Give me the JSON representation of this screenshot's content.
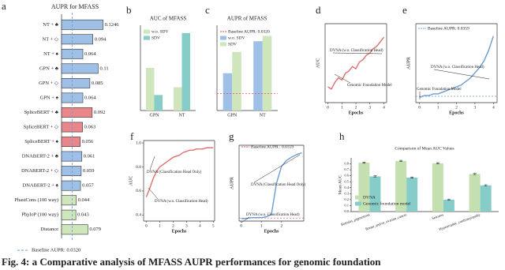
{
  "caption": "Fig. 4: a Comparative analysis of MFASS AUPR performances for genomic foundation",
  "chart_data": [
    {
      "type": "hbar",
      "label": "a",
      "title": "AUPR for MFASS",
      "categories": [
        "NT + ♣",
        "NT + ◇",
        "NT + ♠",
        "GPN + ♣",
        "GPN + ◇",
        "GPN + ♠",
        "SpliceBERT + ♣",
        "SpliceBERT + ◇",
        "SpliceBERT + ♠",
        "DNABERT-2 + ♣",
        "DNABERT-2 + ◇",
        "DNABERT-2 + ♠",
        "PhastCons (100 way)",
        "PhyloP (100 way)",
        "Distance"
      ],
      "values": [
        0.1246,
        0.094,
        0.064,
        0.11,
        0.085,
        0.064,
        0.092,
        0.063,
        0.056,
        0.061,
        0.059,
        0.057,
        0.044,
        0.043,
        0.079
      ],
      "colors": [
        "#9ebfe6",
        "#9ebfe6",
        "#9ebfe6",
        "#9ebfe6",
        "#9ebfe6",
        "#9ebfe6",
        "#e8868b",
        "#e8868b",
        "#e8868b",
        "#9ebfe6",
        "#9ebfe6",
        "#9ebfe6",
        "#cfe6bd",
        "#cfe6bd",
        "#cfe6bd"
      ],
      "xlim": [
        0,
        0.135
      ],
      "baseline": 0.032,
      "baseline_label": "Baseline AUPR: 0.0320",
      "baseline_color": "#6b9bd1"
    },
    {
      "type": "grouped_bar",
      "label": "b",
      "title": "AUC of MFASS",
      "categories": [
        "GPN",
        "NT"
      ],
      "series": [
        {
          "name": "w.o. SDV",
          "color": "#cfe6bd",
          "values": [
            0.61,
            0.56
          ]
        },
        {
          "name": "SDV",
          "color": "#86ccc8",
          "values": [
            0.54,
            0.7
          ]
        }
      ],
      "ylim": [
        0.5,
        0.72
      ]
    },
    {
      "type": "grouped_bar",
      "label": "c",
      "title": "AUPR of MFASS",
      "categories": [
        "GPN",
        "NT"
      ],
      "series": [
        {
          "name": "w.o. SDV",
          "color": "#9ebfe6",
          "values": [
            0.07,
            0.13
          ]
        },
        {
          "name": "SDV",
          "color": "#cfe6bd",
          "values": [
            0.11,
            0.14
          ]
        }
      ],
      "ylim": [
        0,
        0.16
      ],
      "baseline": 0.032,
      "baseline_label": "Baseline AUPR: 0.0320",
      "baseline_color": "#e05050"
    },
    {
      "type": "line",
      "label": "d",
      "xlabel": "Epochs",
      "ylabel": "AUC",
      "x": [
        0,
        0.25,
        0.5,
        0.75,
        1,
        1.25,
        1.5,
        1.75,
        2,
        2.25,
        2.5,
        2.75,
        3,
        3.25,
        3.5,
        3.75,
        4
      ],
      "series": [
        {
          "color": "#e07070",
          "values": [
            0.62,
            0.61,
            0.64,
            0.66,
            0.65,
            0.68,
            0.69,
            0.71,
            0.7,
            0.73,
            0.74,
            0.76,
            0.77,
            0.79,
            0.8,
            0.82,
            0.84
          ]
        }
      ],
      "xlim": [
        -0.2,
        4.2
      ],
      "ylim": [
        0.55,
        0.9
      ],
      "xticks": [
        0,
        1,
        2,
        3,
        4
      ],
      "annotations": [
        "DYNA (w.o. Classification Head)",
        "Genomic Foundation Model"
      ]
    },
    {
      "type": "line",
      "label": "e",
      "xlabel": "Epochs",
      "ylabel": "AUPR",
      "x": [
        0,
        0.25,
        0.5,
        0.75,
        1,
        1.25,
        1.5,
        1.75,
        2,
        2.25,
        2.5,
        2.75,
        3,
        3.25,
        3.5,
        3.75,
        4
      ],
      "series": [
        {
          "color": "#6b9bd1",
          "values": [
            0.03,
            0.04,
            0.04,
            0.05,
            0.05,
            0.06,
            0.07,
            0.08,
            0.09,
            0.1,
            0.12,
            0.14,
            0.17,
            0.2,
            0.24,
            0.3,
            0.38
          ]
        }
      ],
      "xlim": [
        -0.2,
        4.2
      ],
      "ylim": [
        0,
        0.45
      ],
      "xticks": [
        0,
        1,
        2,
        3,
        4
      ],
      "baseline": 0.0359,
      "baseline_label": "Baseline AUPR: 0.0359",
      "baseline_color": "#6b9bd1",
      "annotations": [
        "DYNA (w.o. Classification Head)",
        "Genomic Foundation Model"
      ]
    },
    {
      "type": "line",
      "label": "f",
      "xlabel": "Epochs",
      "ylabel": "AUC",
      "x": [
        0,
        0.25,
        0.5,
        0.75,
        1,
        1.25,
        1.5,
        1.75,
        2,
        2.25,
        2.5,
        2.75,
        3,
        3.25,
        3.5,
        3.75,
        4,
        4.25,
        4.5,
        4.75,
        5
      ],
      "series": [
        {
          "color": "#e07070",
          "values": [
            0.55,
            0.62,
            0.7,
            0.76,
            0.8,
            0.82,
            0.84,
            0.86,
            0.88,
            0.89,
            0.9,
            0.92,
            0.93,
            0.94,
            0.94,
            0.95,
            0.95,
            0.95,
            0.96,
            0.96,
            0.96
          ]
        }
      ],
      "xlim": [
        -0.2,
        5.1
      ],
      "ylim": [
        0.35,
        1.02
      ],
      "xticks": [
        0,
        1,
        2,
        3,
        4,
        5
      ],
      "yticks": [
        0.4,
        0.6,
        0.8,
        {
          "value": 1,
          "label": "1.0"
        }
      ],
      "annotations": [
        "DYNA (Classification Head Only)",
        "DYNA (w.o. Classification Head)"
      ]
    },
    {
      "type": "line",
      "label": "g",
      "xlabel": "Epochs",
      "ylabel": "AUPR",
      "x": [
        0,
        0.25,
        0.5,
        0.75,
        1,
        1.25,
        1.5,
        1.75,
        2,
        2.25,
        2.5,
        2.75,
        3
      ],
      "series": [
        {
          "color": "#6b9bd1",
          "values": [
            0.03,
            0.03,
            0.04,
            0.04,
            0.04,
            0.05,
            0.08,
            0.45,
            0.65,
            0.72,
            0.76,
            0.79,
            0.81
          ]
        }
      ],
      "xlim": [
        -0.1,
        3.1
      ],
      "ylim": [
        0,
        0.9
      ],
      "xticks": [
        0,
        1,
        2
      ],
      "baseline": 0.0359,
      "baseline_label": "Baseline AUPR : 0.0359",
      "baseline_color": "#e05050",
      "annotations": [
        "DYNA (Classification Head Only)",
        "DYNA (w.o. Classification Head)"
      ]
    },
    {
      "type": "grouped_bar",
      "label": "h",
      "title": "Comparison of Mean AUC Values",
      "ylabel": "Mean AUC",
      "categories": [
        "Retinitis_pigmentosa",
        "Breast_and/or_ovarian_cancer",
        "Seizures",
        "Hypertrophic_cardiomyopathy"
      ],
      "series": [
        {
          "name": "DYNA",
          "color": "#c5e0b0",
          "values": [
            0.82,
            0.85,
            0.81,
            0.63
          ],
          "errors": [
            0.01,
            0.01,
            0.01,
            0.01
          ]
        },
        {
          "name": "Genomic foundation model",
          "color": "#86ccc8",
          "values": [
            0.59,
            0.57,
            0.2,
            0.44
          ],
          "errors": [
            0.01,
            0.01,
            0.01,
            0.01
          ]
        }
      ],
      "ylim": [
        0,
        0.9
      ],
      "yticks": [
        {
          "value": 0,
          "label": "0.0"
        },
        0.1,
        0.2,
        0.3,
        0.4,
        0.5,
        0.6,
        0.7,
        0.8
      ]
    }
  ]
}
